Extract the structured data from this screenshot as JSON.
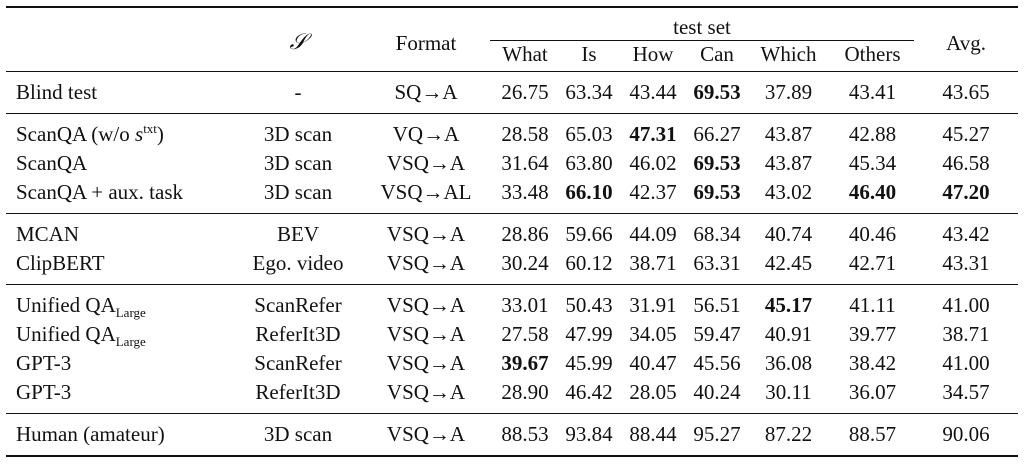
{
  "header": {
    "s_symbol": "𝒮",
    "format": "Format",
    "test_set": "test set",
    "avg": "Avg.",
    "cols": [
      "What",
      "Is",
      "How",
      "Can",
      "Which",
      "Others"
    ]
  },
  "rows": {
    "blind": {
      "name": "Blind test",
      "s": "-",
      "fmt": "SQ→A",
      "v": [
        "26.75",
        "63.34",
        "43.44",
        "69.53",
        "37.89",
        "43.41",
        "43.65"
      ]
    },
    "scanqa_wo": {
      "name_pre": "ScanQA (w/o ",
      "name_s": "s",
      "name_sup": "txt",
      "name_post": ")",
      "s": "3D scan",
      "fmt": "VQ→A",
      "v": [
        "28.58",
        "65.03",
        "47.31",
        "66.27",
        "43.87",
        "42.88",
        "45.27"
      ]
    },
    "scanqa": {
      "name": "ScanQA",
      "s": "3D scan",
      "fmt": "VSQ→A",
      "v": [
        "31.64",
        "63.80",
        "46.02",
        "69.53",
        "43.87",
        "45.34",
        "46.58"
      ]
    },
    "scanqa_aux": {
      "name": "ScanQA + aux. task",
      "s": "3D scan",
      "fmt": "VSQ→AL",
      "v": [
        "33.48",
        "66.10",
        "42.37",
        "69.53",
        "43.02",
        "46.40",
        "47.20"
      ]
    },
    "mcan": {
      "name": "MCAN",
      "s": "BEV",
      "fmt": "VSQ→A",
      "v": [
        "28.86",
        "59.66",
        "44.09",
        "68.34",
        "40.74",
        "40.46",
        "43.42"
      ]
    },
    "clipbert": {
      "name": "ClipBERT",
      "s": "Ego. video",
      "fmt": "VSQ→A",
      "v": [
        "30.24",
        "60.12",
        "38.71",
        "63.31",
        "42.45",
        "42.71",
        "43.31"
      ]
    },
    "uqa_sr": {
      "name": "Unified QA",
      "sub": "Large",
      "s": "ScanRefer",
      "fmt": "VSQ→A",
      "v": [
        "33.01",
        "50.43",
        "31.91",
        "56.51",
        "45.17",
        "41.11",
        "41.00"
      ]
    },
    "uqa_r3": {
      "name": "Unified QA",
      "sub": "Large",
      "s": "ReferIt3D",
      "fmt": "VSQ→A",
      "v": [
        "27.58",
        "47.99",
        "34.05",
        "59.47",
        "40.91",
        "39.77",
        "38.71"
      ]
    },
    "gpt3_sr": {
      "name": "GPT-3",
      "s": "ScanRefer",
      "fmt": "VSQ→A",
      "v": [
        "39.67",
        "45.99",
        "40.47",
        "45.56",
        "36.08",
        "38.42",
        "41.00"
      ]
    },
    "gpt3_r3": {
      "name": "GPT-3",
      "s": "ReferIt3D",
      "fmt": "VSQ→A",
      "v": [
        "28.90",
        "46.42",
        "28.05",
        "40.24",
        "30.11",
        "36.07",
        "34.57"
      ]
    },
    "human": {
      "name": "Human (amateur)",
      "s": "3D scan",
      "fmt": "VSQ→A",
      "v": [
        "88.53",
        "93.84",
        "88.44",
        "95.27",
        "87.22",
        "88.57",
        "90.06"
      ]
    }
  }
}
